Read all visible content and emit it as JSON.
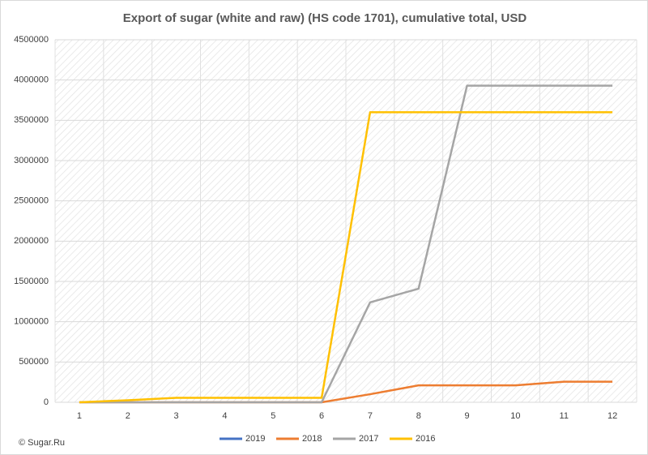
{
  "chart_data": {
    "type": "line",
    "title": "Export of sugar (white and raw) (HS code 1701), cumulative total, USD",
    "categories": [
      "1",
      "2",
      "3",
      "4",
      "5",
      "6",
      "7",
      "8",
      "9",
      "10",
      "11",
      "12"
    ],
    "series": [
      {
        "name": "2019",
        "color": "#4472c4",
        "values": [
          null,
          null,
          null,
          null,
          null,
          null,
          null,
          null,
          null,
          null,
          null,
          null
        ]
      },
      {
        "name": "2018",
        "color": "#ed7d31",
        "values": [
          0,
          0,
          0,
          0,
          0,
          0,
          100000,
          210000,
          210000,
          210000,
          255000,
          255000
        ]
      },
      {
        "name": "2017",
        "color": "#a5a5a5",
        "values": [
          0,
          0,
          0,
          0,
          0,
          0,
          1240000,
          1410000,
          3930000,
          3930000,
          3930000,
          3930000
        ]
      },
      {
        "name": "2016",
        "color": "#ffc000",
        "values": [
          0,
          25000,
          55000,
          55000,
          55000,
          55000,
          3600000,
          3600000,
          3600000,
          3600000,
          3600000,
          3600000
        ]
      }
    ],
    "ylim": [
      0,
      4500000
    ],
    "yticks": [
      0,
      500000,
      1000000,
      1500000,
      2000000,
      2500000,
      3000000,
      3500000,
      4000000,
      4500000
    ],
    "grid": true,
    "legend": "bottom",
    "source": "© Sugar.Ru"
  }
}
